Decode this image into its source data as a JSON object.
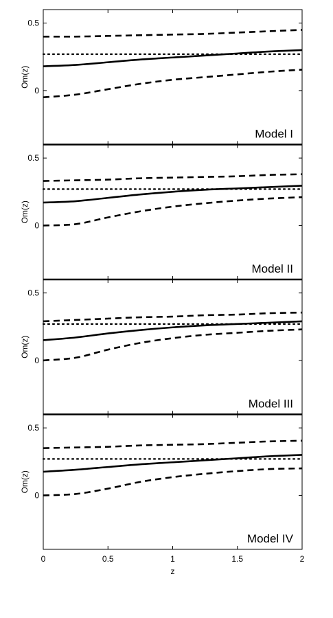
{
  "chart_data": {
    "type": "line",
    "xlabel": "z",
    "ylabel": "Om(z)",
    "xlim": [
      0,
      2
    ],
    "x_ticks": [
      0,
      0.5,
      1,
      1.5,
      2
    ],
    "x_tick_labels": [
      "0",
      "0.5",
      "1",
      "1.5",
      "2"
    ],
    "y_ticks": [
      0,
      0.5
    ],
    "y_tick_labels": [
      "0",
      "0.5"
    ],
    "grid": false,
    "x": [
      0,
      0.25,
      0.5,
      0.75,
      1.0,
      1.25,
      1.5,
      1.75,
      2.0
    ],
    "panels": [
      {
        "label": "Model I",
        "ylim": [
          -0.4,
          0.6
        ],
        "series": [
          {
            "style": "solid",
            "values": [
              0.18,
              0.19,
              0.21,
              0.23,
              0.245,
              0.26,
              0.275,
              0.29,
              0.3
            ]
          },
          {
            "style": "dashed",
            "values": [
              0.4,
              0.4,
              0.405,
              0.41,
              0.415,
              0.42,
              0.43,
              0.44,
              0.45
            ]
          },
          {
            "style": "dashed",
            "values": [
              -0.05,
              -0.03,
              0.01,
              0.05,
              0.08,
              0.1,
              0.12,
              0.14,
              0.155
            ]
          },
          {
            "style": "dotted",
            "values": [
              0.27,
              0.27,
              0.27,
              0.27,
              0.27,
              0.27,
              0.27,
              0.27,
              0.27
            ]
          }
        ]
      },
      {
        "label": "Model II",
        "ylim": [
          -0.4,
          0.6
        ],
        "series": [
          {
            "style": "solid",
            "values": [
              0.17,
              0.18,
              0.205,
              0.23,
              0.25,
              0.265,
              0.275,
              0.285,
              0.295
            ]
          },
          {
            "style": "dashed",
            "values": [
              0.33,
              0.335,
              0.34,
              0.35,
              0.355,
              0.36,
              0.365,
              0.375,
              0.38
            ]
          },
          {
            "style": "dashed",
            "values": [
              0.0,
              0.01,
              0.06,
              0.105,
              0.14,
              0.165,
              0.185,
              0.2,
              0.21
            ]
          },
          {
            "style": "dotted",
            "values": [
              0.27,
              0.27,
              0.27,
              0.27,
              0.27,
              0.27,
              0.27,
              0.27,
              0.27
            ]
          }
        ]
      },
      {
        "label": "Model III",
        "ylim": [
          -0.4,
          0.6
        ],
        "series": [
          {
            "style": "solid",
            "values": [
              0.15,
              0.17,
              0.2,
              0.225,
              0.245,
              0.26,
              0.27,
              0.28,
              0.29
            ]
          },
          {
            "style": "dashed",
            "values": [
              0.29,
              0.3,
              0.31,
              0.32,
              0.325,
              0.335,
              0.34,
              0.35,
              0.355
            ]
          },
          {
            "style": "dashed",
            "values": [
              0.0,
              0.02,
              0.08,
              0.13,
              0.165,
              0.19,
              0.205,
              0.22,
              0.23
            ]
          },
          {
            "style": "dotted",
            "values": [
              0.27,
              0.27,
              0.27,
              0.27,
              0.27,
              0.27,
              0.27,
              0.27,
              0.27
            ]
          }
        ]
      },
      {
        "label": "Model IV",
        "ylim": [
          -0.4,
          0.6
        ],
        "series": [
          {
            "style": "solid",
            "values": [
              0.175,
              0.19,
              0.21,
              0.23,
              0.245,
              0.26,
              0.275,
              0.29,
              0.3
            ]
          },
          {
            "style": "dashed",
            "values": [
              0.35,
              0.355,
              0.36,
              0.37,
              0.375,
              0.38,
              0.39,
              0.4,
              0.405
            ]
          },
          {
            "style": "dashed",
            "values": [
              0.0,
              0.01,
              0.05,
              0.1,
              0.135,
              0.16,
              0.18,
              0.195,
              0.2
            ]
          },
          {
            "style": "dotted",
            "values": [
              0.27,
              0.27,
              0.27,
              0.27,
              0.27,
              0.27,
              0.27,
              0.27,
              0.27
            ]
          }
        ]
      }
    ]
  }
}
